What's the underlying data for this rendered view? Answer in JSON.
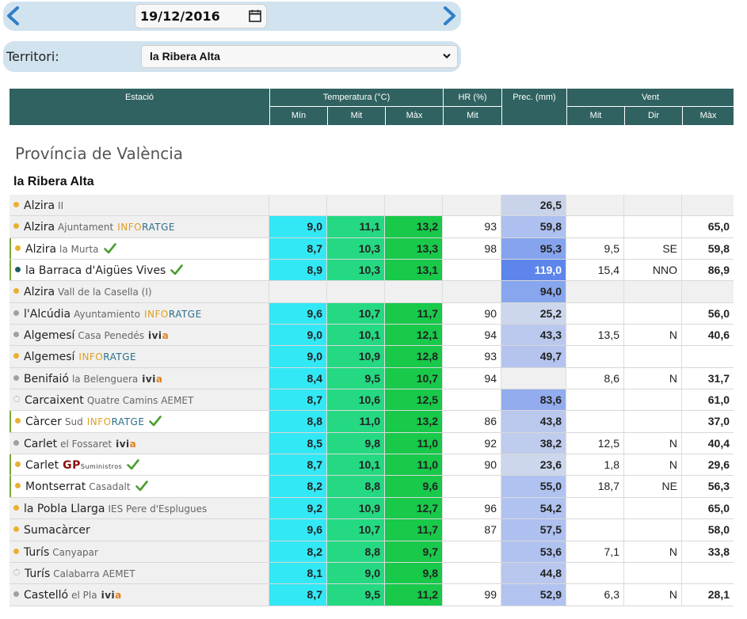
{
  "nav": {
    "date": "19/12/2016",
    "territori_label": "Territori:",
    "territori_value": "la Ribera Alta"
  },
  "header": {
    "estacio": "Estació",
    "temperatura": "Temperatura (°C)",
    "hr": "HR (%)",
    "prec": "Prec. (mm)",
    "vent": "Vent",
    "min": "Mín",
    "mit": "Mit",
    "max": "Màx",
    "hr_mit": "Mit",
    "vent_mit": "Mit",
    "vent_dir": "Dir",
    "vent_max": "Màx"
  },
  "province": "Província de València",
  "region": "la Ribera Alta",
  "colors": {
    "header_bg": "#2f6260",
    "nav_bg": "#d1e3ef",
    "min_bg": "#33e8f5",
    "mit_bg": "#24d982",
    "max_bg": "#18c94a",
    "dot_yellow": "#e8b030",
    "dot_grey": "#a0a0a0",
    "dot_teal": "#1f5e63",
    "check_green": "#4a9e2f"
  },
  "rows": [
    {
      "name": "Alzira",
      "sub": "II",
      "src": "",
      "check": false,
      "dot": "yellow",
      "min": "",
      "mit": "",
      "max": "",
      "hr": "",
      "prec": "26,5",
      "vmit": "",
      "vdir": "",
      "vmax": "",
      "prec_bg": "#c9d3ea",
      "hl": false
    },
    {
      "name": "Alzira",
      "sub": "Ajuntament",
      "src": "inforatge",
      "check": false,
      "dot": "yellow",
      "min": "9,0",
      "mit": "11,1",
      "max": "13,2",
      "hr": "93",
      "prec": "59,8",
      "vmit": "",
      "vdir": "",
      "vmax": "65,0",
      "prec_bg": "#aec0ef",
      "hl": false
    },
    {
      "name": "Alzira",
      "sub": "la Murta",
      "src": "",
      "check": true,
      "dot": "yellow",
      "min": "8,7",
      "mit": "10,3",
      "max": "13,3",
      "hr": "98",
      "prec": "95,3",
      "vmit": "9,5",
      "vdir": "SE",
      "vmax": "59,8",
      "prec_bg": "#86a4ee",
      "hl": true
    },
    {
      "name": "la Barraca d'Aigües Vives",
      "sub": "",
      "src": "",
      "check": true,
      "dot": "teal",
      "min": "8,9",
      "mit": "10,3",
      "max": "13,1",
      "hr": "",
      "prec": "119,0",
      "vmit": "15,4",
      "vdir": "NNO",
      "vmax": "86,9",
      "prec_bg": "#5d85ec",
      "hl": true,
      "prec_white": true
    },
    {
      "name": "Alzira",
      "sub": "Vall de la Casella (I)",
      "src": "",
      "check": false,
      "dot": "yellow",
      "min": "",
      "mit": "",
      "max": "",
      "hr": "",
      "prec": "94,0",
      "vmit": "",
      "vdir": "",
      "vmax": "",
      "prec_bg": "#88a6ee",
      "hl": false
    },
    {
      "name": "l'Alcúdia",
      "sub": "Ayuntamiento",
      "src": "inforatge",
      "check": false,
      "dot": "grey",
      "min": "9,6",
      "mit": "10,7",
      "max": "11,7",
      "hr": "90",
      "prec": "25,2",
      "vmit": "",
      "vdir": "",
      "vmax": "56,0",
      "prec_bg": "#ccd6ec",
      "hl": false
    },
    {
      "name": "Algemesí",
      "sub": "Casa Penedés",
      "src": "ivia",
      "check": false,
      "dot": "grey",
      "min": "9,0",
      "mit": "10,1",
      "max": "12,1",
      "hr": "94",
      "prec": "43,3",
      "vmit": "13,5",
      "vdir": "N",
      "vmax": "40,6",
      "prec_bg": "#bac8ee",
      "hl": false
    },
    {
      "name": "Algemesí",
      "sub": "",
      "src": "inforatge",
      "check": false,
      "dot": "yellow",
      "min": "9,0",
      "mit": "10,9",
      "max": "12,8",
      "hr": "93",
      "prec": "49,7",
      "vmit": "",
      "vdir": "",
      "vmax": "",
      "prec_bg": "#b4c4ef",
      "hl": false
    },
    {
      "name": "Benifaió",
      "sub": "la Belenguera",
      "src": "ivia",
      "check": false,
      "dot": "grey",
      "min": "8,4",
      "mit": "9,5",
      "max": "10,7",
      "hr": "94",
      "prec": "",
      "vmit": "8,6",
      "vdir": "N",
      "vmax": "31,7",
      "prec_bg": "#f0f0f0",
      "hl": false
    },
    {
      "name": "Carcaixent",
      "sub": "Quatre Camins AEMET",
      "src": "",
      "check": false,
      "dot": "dotted",
      "min": "8,7",
      "mit": "10,6",
      "max": "12,5",
      "hr": "",
      "prec": "83,6",
      "vmit": "",
      "vdir": "",
      "vmax": "61,0",
      "prec_bg": "#92acee",
      "hl": false
    },
    {
      "name": "Càrcer",
      "sub": "Sud",
      "src": "inforatge",
      "check": true,
      "dot": "yellow",
      "min": "8,8",
      "mit": "11,0",
      "max": "13,2",
      "hr": "86",
      "prec": "43,8",
      "vmit": "",
      "vdir": "",
      "vmax": "37,0",
      "prec_bg": "#bac8ee",
      "hl": true
    },
    {
      "name": "Carlet",
      "sub": "el Fossaret",
      "src": "ivia",
      "check": false,
      "dot": "grey",
      "min": "8,5",
      "mit": "9,8",
      "max": "11,0",
      "hr": "92",
      "prec": "38,2",
      "vmit": "12,5",
      "vdir": "N",
      "vmax": "40,4",
      "prec_bg": "#bfcced",
      "hl": false
    },
    {
      "name": "Carlet",
      "sub": "",
      "src": "gp",
      "check": true,
      "dot": "yellow",
      "min": "8,7",
      "mit": "10,1",
      "max": "11,0",
      "hr": "90",
      "prec": "23,6",
      "vmit": "1,8",
      "vdir": "N",
      "vmax": "29,6",
      "prec_bg": "#ccd6ec",
      "hl": true
    },
    {
      "name": "Montserrat",
      "sub": "Casadalt",
      "src": "",
      "check": true,
      "dot": "yellow",
      "min": "8,2",
      "mit": "8,8",
      "max": "9,6",
      "hr": "",
      "prec": "55,0",
      "vmit": "18,7",
      "vdir": "NE",
      "vmax": "56,3",
      "prec_bg": "#b0c2ef",
      "hl": true
    },
    {
      "name": "la Pobla Llarga",
      "sub": "IES Pere d'Esplugues",
      "src": "",
      "check": false,
      "dot": "yellow",
      "min": "9,2",
      "mit": "10,9",
      "max": "12,7",
      "hr": "96",
      "prec": "54,2",
      "vmit": "",
      "vdir": "",
      "vmax": "65,0",
      "prec_bg": "#b0c2ef",
      "hl": false
    },
    {
      "name": "Sumacàrcer",
      "sub": "",
      "src": "",
      "check": false,
      "dot": "yellow",
      "min": "9,6",
      "mit": "10,7",
      "max": "11,7",
      "hr": "87",
      "prec": "57,5",
      "vmit": "",
      "vdir": "",
      "vmax": "58,0",
      "prec_bg": "#aec0ef",
      "hl": false
    },
    {
      "name": "Turís",
      "sub": "Canyapar",
      "src": "",
      "check": false,
      "dot": "yellow",
      "min": "8,2",
      "mit": "8,8",
      "max": "9,7",
      "hr": "",
      "prec": "53,6",
      "vmit": "7,1",
      "vdir": "N",
      "vmax": "33,8",
      "prec_bg": "#b0c2ef",
      "hl": false
    },
    {
      "name": "Turís",
      "sub": "Calabarra AEMET",
      "src": "",
      "check": false,
      "dot": "dotted",
      "min": "8,1",
      "mit": "9,0",
      "max": "9,8",
      "hr": "",
      "prec": "44,8",
      "vmit": "",
      "vdir": "",
      "vmax": "",
      "prec_bg": "#b9c7ee",
      "hl": false
    },
    {
      "name": "Castelló",
      "sub": "el Pla",
      "src": "ivia",
      "check": false,
      "dot": "grey",
      "min": "8,7",
      "mit": "9,5",
      "max": "11,2",
      "hr": "99",
      "prec": "52,9",
      "vmit": "6,3",
      "vdir": "N",
      "vmax": "28,1",
      "prec_bg": "#b2c3ef",
      "hl": false
    }
  ]
}
